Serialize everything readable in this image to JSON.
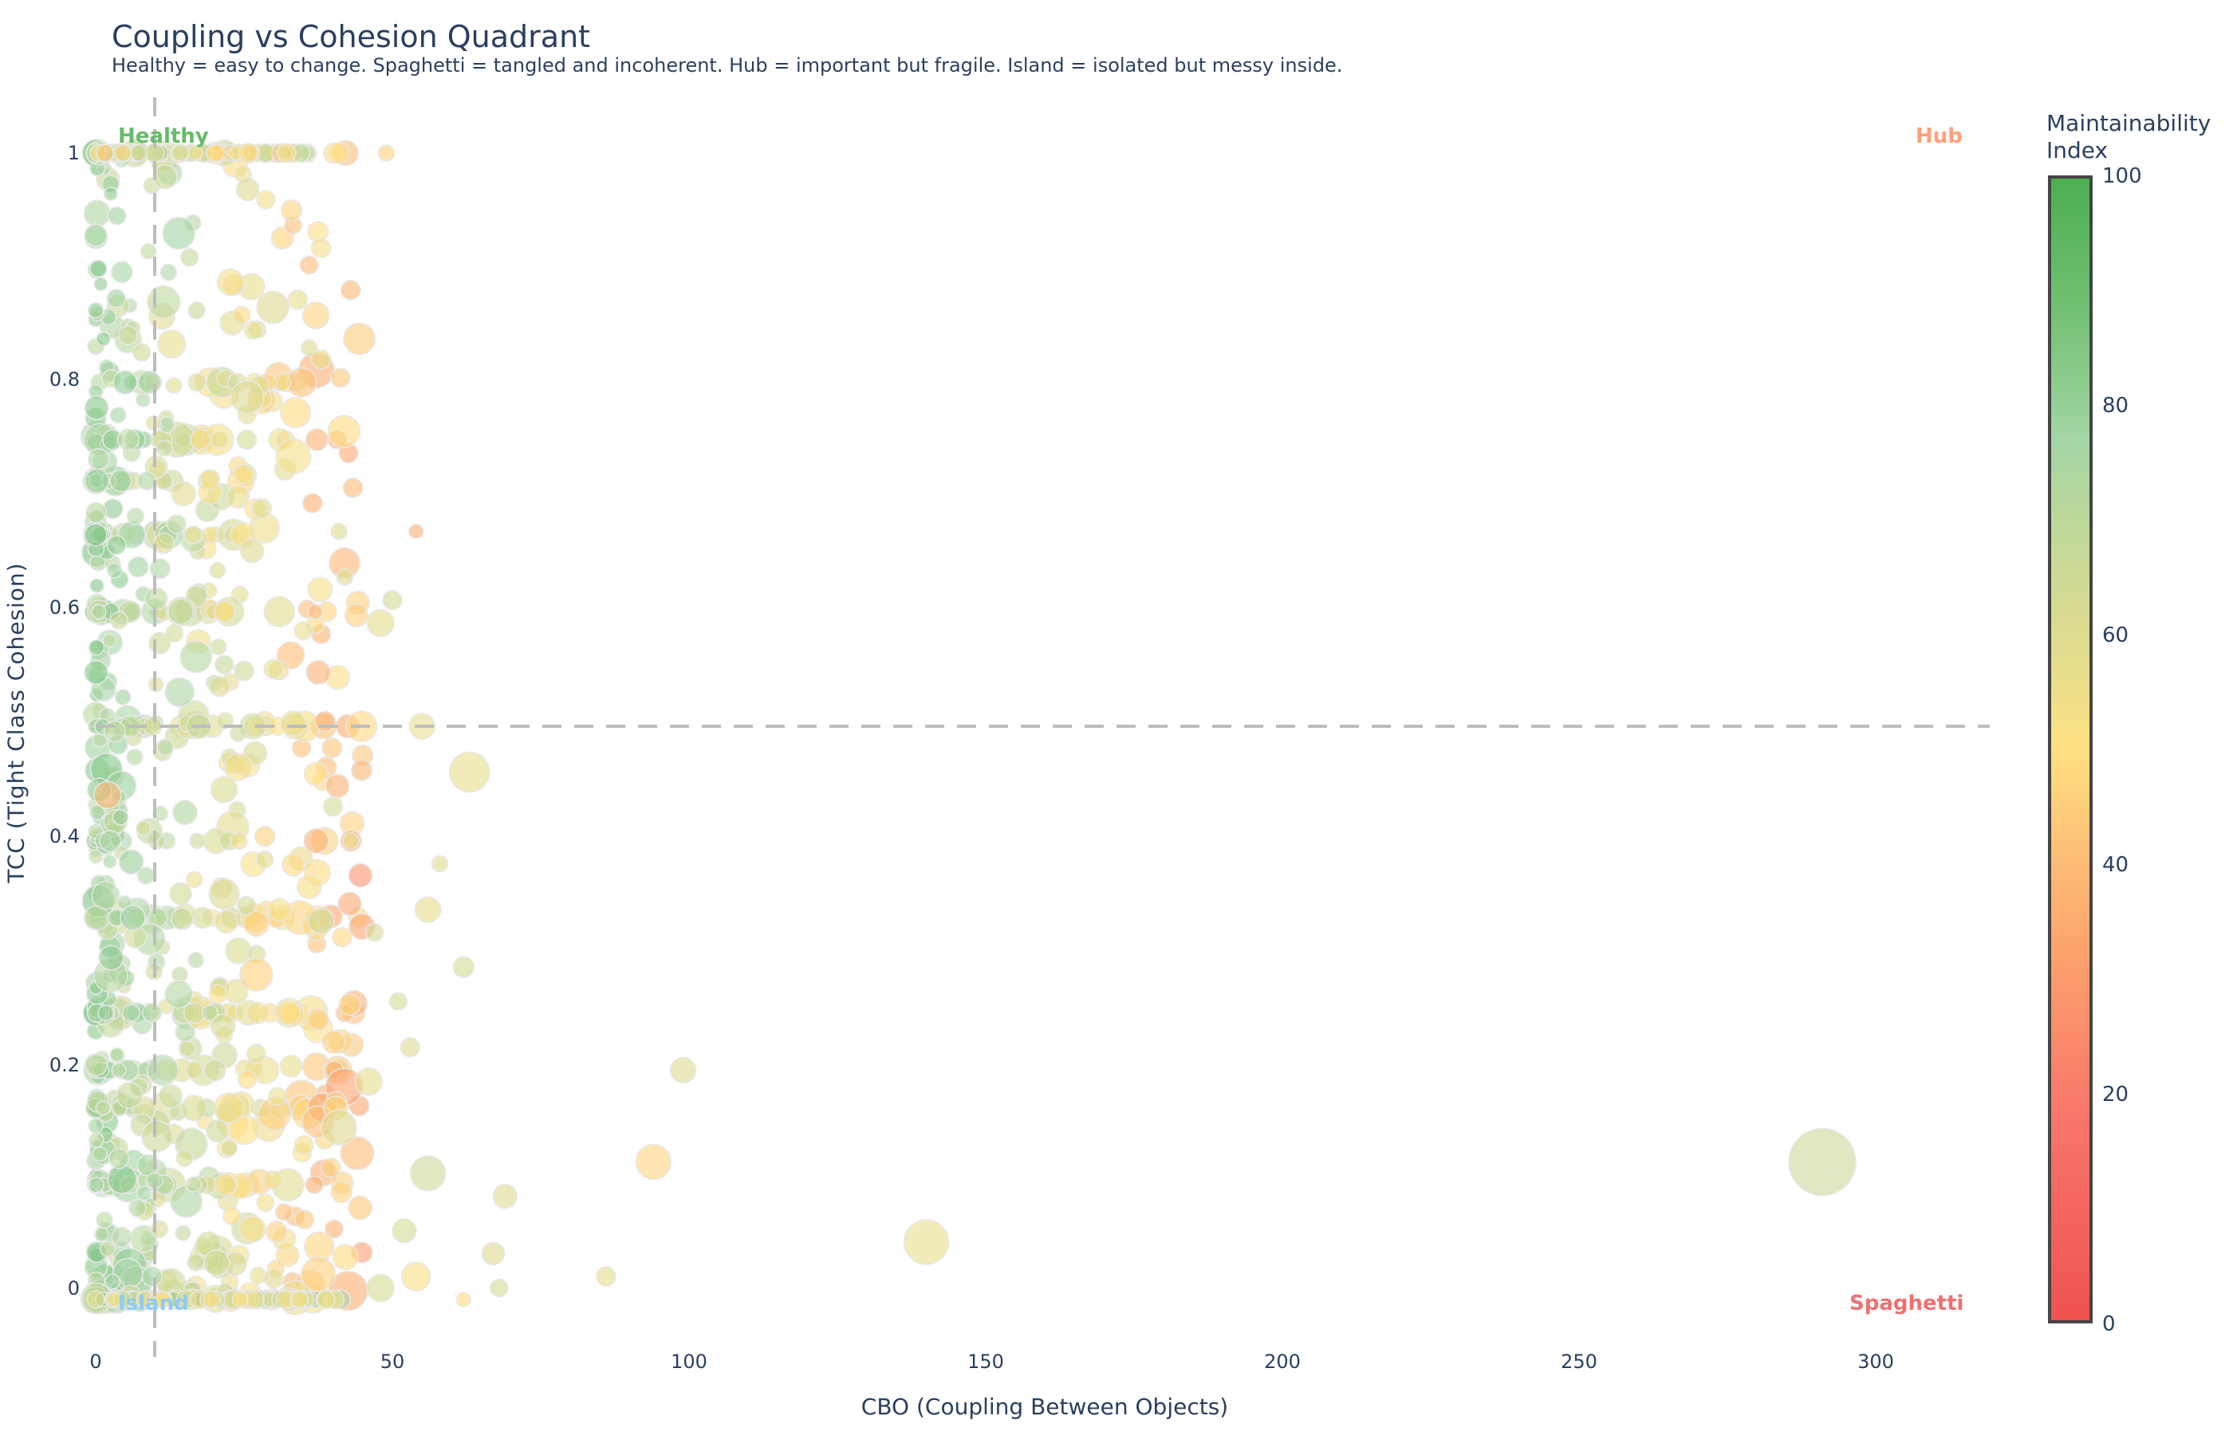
{
  "title": "Coupling vs Cohesion Quadrant",
  "subtitle": "Healthy = easy to change. Spaghetti = tangled and incoherent. Hub = important but fragile. Island = isolated but messy inside.",
  "quadrants": {
    "healthy": {
      "label": "Healthy",
      "color": "#66bb6a"
    },
    "hub": {
      "label": "Hub",
      "color": "#ffa07a"
    },
    "island": {
      "label": "Island",
      "color": "#90caf9"
    },
    "spaghetti": {
      "label": "Spaghetti",
      "color": "#ef7070"
    }
  },
  "colorbar": {
    "title_line1": "Maintainability",
    "title_line2": "Index",
    "ticks": [
      "100",
      "80",
      "60",
      "40",
      "20",
      "0"
    ],
    "colors": {
      "0": "#ef5350",
      "50": "#ffe082",
      "75": "#a5d6a7",
      "100": "#4caf50"
    }
  },
  "axes": {
    "xlabel": "CBO (Coupling Between Objects)",
    "ylabel": "TCC (Tight Class Cohesion)",
    "xticks": [
      "0",
      "50",
      "100",
      "150",
      "200",
      "250",
      "300"
    ],
    "yticks": [
      "0",
      "0.2",
      "0.4",
      "0.6",
      "0.8",
      "1"
    ]
  },
  "chart_data": {
    "type": "scatter",
    "title": "Coupling vs Cohesion Quadrant",
    "subtitle": "Healthy = easy to change. Spaghetti = tangled and incoherent. Hub = important but fragile. Island = isolated but messy inside.",
    "xlabel": "CBO (Coupling Between Objects)",
    "ylabel": "TCC (Tight Class Cohesion)",
    "xlim": [
      0,
      319
    ],
    "ylim": [
      -0.05,
      1.05
    ],
    "xticks": [
      0,
      50,
      100,
      150,
      200,
      250,
      300
    ],
    "yticks": [
      0,
      0.2,
      0.4,
      0.6,
      0.8,
      1
    ],
    "thresholds": {
      "x": 10,
      "y": 0.5
    },
    "color_metric": "Maintainability Index",
    "color_range": [
      0,
      100
    ],
    "size_metric": "class size (relative)",
    "grid": false,
    "legend": "colorbar right",
    "points": [
      {
        "x": 291,
        "y": 0.12,
        "mi": 66,
        "s": 42
      },
      {
        "x": 140,
        "y": 0.05,
        "mi": 57,
        "s": 28
      },
      {
        "x": 94,
        "y": 0.12,
        "mi": 46,
        "s": 22
      },
      {
        "x": 99,
        "y": 0.2,
        "mi": 60,
        "s": 16
      },
      {
        "x": 86,
        "y": 0.02,
        "mi": 58,
        "s": 12
      },
      {
        "x": 63,
        "y": 0.46,
        "mi": 57,
        "s": 25
      },
      {
        "x": 56,
        "y": 0.11,
        "mi": 64,
        "s": 22
      },
      {
        "x": 69,
        "y": 0.09,
        "mi": 60,
        "s": 15
      },
      {
        "x": 67,
        "y": 0.04,
        "mi": 60,
        "s": 14
      },
      {
        "x": 68,
        "y": 0.01,
        "mi": 62,
        "s": 11
      },
      {
        "x": 62,
        "y": 0.29,
        "mi": 62,
        "s": 13
      },
      {
        "x": 56,
        "y": 0.34,
        "mi": 57,
        "s": 16
      },
      {
        "x": 58,
        "y": 0.38,
        "mi": 60,
        "s": 10
      },
      {
        "x": 55,
        "y": 0.5,
        "mi": 57,
        "s": 16
      },
      {
        "x": 54,
        "y": 0.67,
        "mi": 35,
        "s": 9
      },
      {
        "x": 50,
        "y": 0.61,
        "mi": 62,
        "s": 12
      },
      {
        "x": 48,
        "y": 0.59,
        "mi": 58,
        "s": 17
      },
      {
        "x": 37,
        "y": 0.6,
        "mi": 38,
        "s": 9
      },
      {
        "x": 49,
        "y": 1.0,
        "mi": 45,
        "s": 10
      },
      {
        "x": 41,
        "y": 1.0,
        "mi": 50,
        "s": 13
      },
      {
        "x": 14,
        "y": 0.93,
        "mi": 78,
        "s": 20
      },
      {
        "x": 33,
        "y": 0.95,
        "mi": 46,
        "s": 13
      },
      {
        "x": 2,
        "y": 0.44,
        "mi": 38,
        "s": 17
      },
      {
        "x": 53,
        "y": 0.22,
        "mi": 60,
        "s": 12
      },
      {
        "x": 51,
        "y": 0.26,
        "mi": 62,
        "s": 11
      },
      {
        "x": 46,
        "y": 0.19,
        "mi": 58,
        "s": 17
      },
      {
        "x": 47,
        "y": 0.32,
        "mi": 62,
        "s": 11
      },
      {
        "x": 52,
        "y": 0.06,
        "mi": 62,
        "s": 15
      },
      {
        "x": 48,
        "y": 0.01,
        "mi": 62,
        "s": 17
      },
      {
        "x": 54,
        "y": 0.02,
        "mi": 52,
        "s": 18
      },
      {
        "x": 62,
        "y": 0.0,
        "mi": 48,
        "s": 9
      },
      {
        "x": 41,
        "y": 0.15,
        "mi": 60,
        "s": 22
      },
      {
        "x": 36,
        "y": 0.36,
        "mi": 52,
        "s": 15
      },
      {
        "x": 38,
        "y": 0.33,
        "mi": 64,
        "s": 16
      },
      {
        "x": 31,
        "y": 0.34,
        "mi": 52,
        "s": 14
      },
      {
        "x": 40,
        "y": 0.43,
        "mi": 62,
        "s": 12
      },
      {
        "x": 43,
        "y": 0.4,
        "mi": 57,
        "s": 10
      },
      {
        "x": 42,
        "y": 0.63,
        "mi": 60,
        "s": 10
      },
      {
        "x": 41,
        "y": 0.67,
        "mi": 60,
        "s": 10
      },
      {
        "x": 36,
        "y": 0.83,
        "mi": 60,
        "s": 10
      },
      {
        "x": 38,
        "y": 0.82,
        "mi": 57,
        "s": 12
      },
      {
        "x": 30,
        "y": 0.55,
        "mi": 57,
        "s": 12
      },
      {
        "x": 25,
        "y": 0.72,
        "mi": 52,
        "s": 12
      },
      {
        "x": 24,
        "y": 0.7,
        "mi": 57,
        "s": 14
      },
      {
        "x": 28,
        "y": 0.69,
        "mi": 60,
        "s": 12
      }
    ]
  }
}
